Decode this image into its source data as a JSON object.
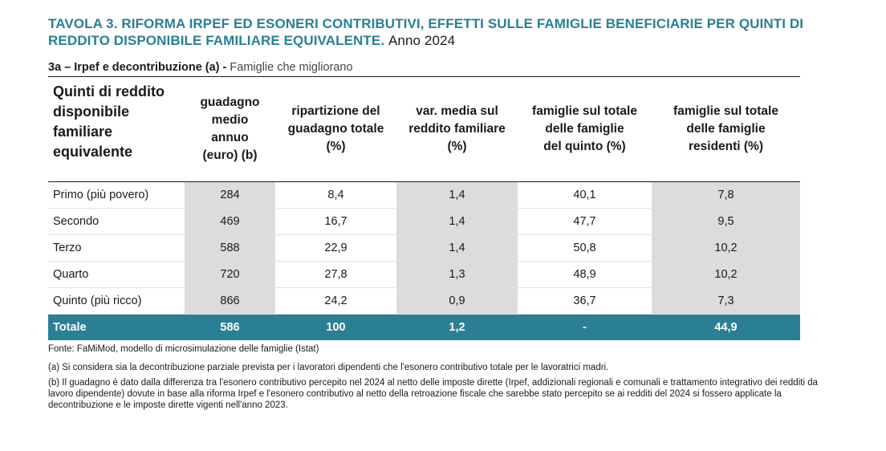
{
  "header": {
    "title_main": "TAVOLA 3. RIFORMA IRPEF ED ESONERI CONTRIBUTIVI, EFFETTI SULLE FAMIGLIE BENEFICIARIE PER QUINTI DI REDDITO DISPONIBILE FAMILIARE EQUIVALENTE.",
    "title_year": "Anno 2024",
    "subtitle_bold": "3a – Irpef e decontribuzione (a) -",
    "subtitle_light": "Famiglie che migliorano"
  },
  "table": {
    "headers": [
      [
        "Quinti di reddito",
        "disponibile",
        "familiare",
        "equivalente"
      ],
      [
        "guadagno",
        "medio",
        "annuo",
        "(euro) (b)"
      ],
      [
        "ripartizione del",
        "guadagno totale",
        "(%)"
      ],
      [
        "var. media sul",
        "reddito familiare",
        "(%)"
      ],
      [
        "famiglie sul totale",
        "delle famiglie",
        "del quinto (%)"
      ],
      [
        "famiglie sul totale",
        "delle famiglie",
        "residenti (%)"
      ]
    ],
    "rows": [
      [
        "Primo (più povero)",
        "284",
        "8,4",
        "1,4",
        "40,1",
        "7,8"
      ],
      [
        "Secondo",
        "469",
        "16,7",
        "1,4",
        "47,7",
        "9,5"
      ],
      [
        "Terzo",
        "588",
        "22,9",
        "1,4",
        "50,8",
        "10,2"
      ],
      [
        "Quarto",
        "720",
        "27,8",
        "1,3",
        "48,9",
        "10,2"
      ],
      [
        "Quinto (più ricco)",
        "866",
        "24,2",
        "0,9",
        "36,7",
        "7,3"
      ]
    ],
    "total": [
      "Totale",
      "586",
      "100",
      "1,2",
      "-",
      "44,9"
    ]
  },
  "footer": {
    "fonte": "Fonte: FaMiMod, modello di microsimulazione delle famiglie (Istat)",
    "note_a": "(a) Si considera sia la decontribuzione parziale prevista per i lavoratori dipendenti che l'esonero contributivo totale per le lavoratrici madri.",
    "note_b": "(b) Il guadagno è dato dalla differenza tra l'esonero contributivo percepito nel 2024 al netto delle imposte dirette (Irpef, addizionali regionali e comunali e trattamento integrativo dei redditi da lavoro dipendente) dovute in base alla riforma Irpef e l'esonero contributivo al netto della retroazione fiscale che sarebbe stato percepito se ai redditi del 2024 si fossero applicate la decontribuzione e le imposte dirette vigenti nell'anno 2023."
  },
  "colors": {
    "accent": "#2b7f95",
    "shade": "#dcdcdc"
  }
}
